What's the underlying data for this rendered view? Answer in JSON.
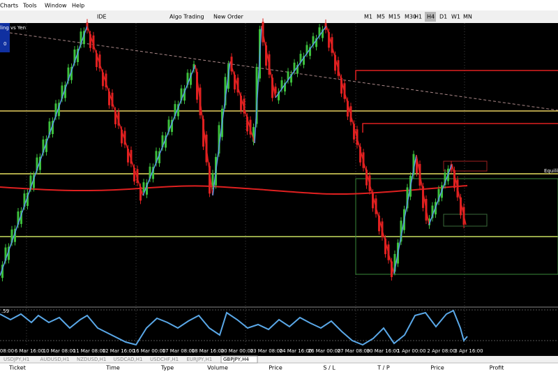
{
  "menu": [
    "Charts",
    "Tools",
    "Window",
    "Help"
  ],
  "toolbar": {
    "buttons": [
      "IDE",
      "Algo Trading",
      "New Order"
    ],
    "timeframes": [
      "M1",
      "M5",
      "M15",
      "M30",
      "H1",
      "H4",
      "D1",
      "W1",
      "MN"
    ]
  },
  "chart": {
    "symbol_label": "ling vs Yen",
    "badge": "0",
    "line_label": "Equilibr",
    "indicator_label": ".59",
    "time_labels": [
      "08:00",
      "6 Mar 16:00",
      "10 Mar 08:00",
      "11 Mar 08:00",
      "12 Mar 16:00",
      "16 Mar 00:00",
      "17 Mar 08:00",
      "18 Mar 16:00",
      "20 Mar 00:00",
      "23 Mar 08:00",
      "24 Mar 16:00",
      "26 Mar 00:00",
      "27 Mar 08:00",
      "30 Mar 16:00",
      "1 Apr 00:00",
      "2 Apr 08:00",
      "3 Apr 16:00"
    ]
  },
  "tabs": [
    "USDJPY,H1",
    "AUDUSD,H1",
    "NZDUSD,H1",
    "USDCAD,H1",
    "USDCHF,H1",
    "EURJPY,H1",
    "GBPJPY,H4"
  ],
  "columns": [
    "Ticket",
    "Time",
    "Type",
    "Volume",
    "Price",
    "S / L",
    "T / P",
    "Price",
    "Profit"
  ]
}
